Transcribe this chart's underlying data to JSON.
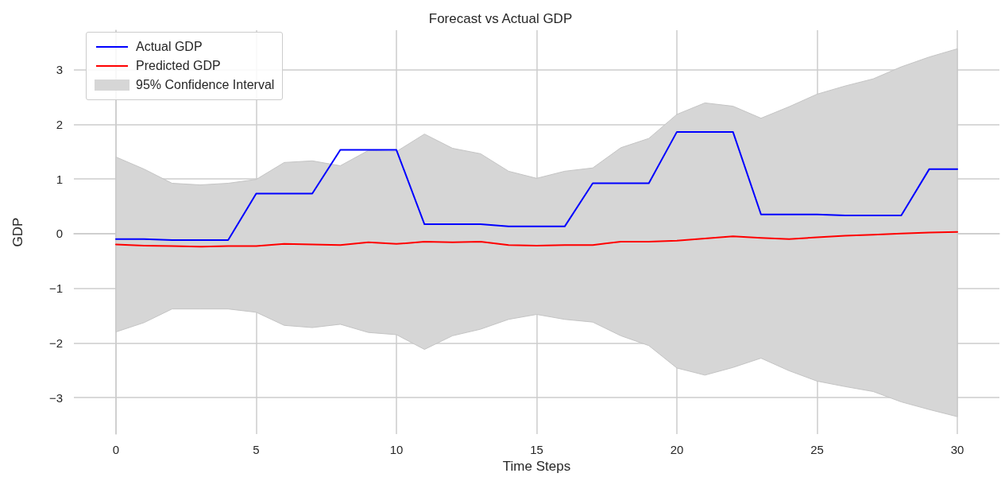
{
  "chart_data": {
    "type": "line",
    "title": "Forecast vs Actual GDP",
    "xlabel": "Time Steps",
    "ylabel": "GDP",
    "x": [
      0,
      1,
      2,
      3,
      4,
      5,
      6,
      7,
      8,
      9,
      10,
      11,
      12,
      13,
      14,
      15,
      16,
      17,
      18,
      19,
      20,
      21,
      22,
      23,
      24,
      25,
      26,
      27,
      28,
      29,
      30
    ],
    "series": [
      {
        "name": "Actual GDP",
        "color": "#0000ff",
        "values": [
          -0.1,
          -0.1,
          -0.12,
          -0.12,
          -0.12,
          0.73,
          0.73,
          0.73,
          1.53,
          1.53,
          1.53,
          0.17,
          0.17,
          0.17,
          0.13,
          0.13,
          0.13,
          0.92,
          0.92,
          0.92,
          1.86,
          1.86,
          1.86,
          0.35,
          0.35,
          0.35,
          0.33,
          0.33,
          0.33,
          1.18,
          1.18
        ]
      },
      {
        "name": "Predicted GDP",
        "color": "#ff0000",
        "values": [
          -0.2,
          -0.22,
          -0.23,
          -0.24,
          -0.23,
          -0.23,
          -0.19,
          -0.2,
          -0.21,
          -0.16,
          -0.19,
          -0.15,
          -0.16,
          -0.15,
          -0.21,
          -0.22,
          -0.21,
          -0.21,
          -0.15,
          -0.15,
          -0.13,
          -0.09,
          -0.05,
          -0.08,
          -0.1,
          -0.07,
          -0.04,
          -0.02,
          0,
          0.02,
          0.03
        ],
        "lower": [
          -1.8,
          -1.63,
          -1.38,
          -1.38,
          -1.38,
          -1.44,
          -1.68,
          -1.72,
          -1.66,
          -1.81,
          -1.85,
          -2.12,
          -1.87,
          -1.75,
          -1.57,
          -1.48,
          -1.57,
          -1.62,
          -1.87,
          -2.05,
          -2.46,
          -2.59,
          -2.45,
          -2.28,
          -2.51,
          -2.7,
          -2.8,
          -2.89,
          -3.08,
          -3.22,
          -3.35
        ],
        "upper": [
          1.4,
          1.18,
          0.92,
          0.89,
          0.92,
          0.99,
          1.3,
          1.33,
          1.24,
          1.52,
          1.5,
          1.82,
          1.56,
          1.46,
          1.14,
          1.01,
          1.14,
          1.2,
          1.57,
          1.74,
          2.18,
          2.39,
          2.33,
          2.11,
          2.32,
          2.55,
          2.7,
          2.83,
          3.05,
          3.23,
          3.38
        ]
      }
    ],
    "annotations": [
      "95% Confidence Interval"
    ],
    "xlim": [
      -1.5,
      31.5
    ],
    "xticks": [
      0,
      5,
      10,
      15,
      20,
      25,
      30
    ],
    "ylim": [
      -3.67,
      3.72
    ],
    "yticks": [
      -3,
      -2,
      -1,
      0,
      1,
      2,
      3
    ],
    "grid": true,
    "legend": "top left",
    "marker": "none",
    "line_style": "solid"
  }
}
